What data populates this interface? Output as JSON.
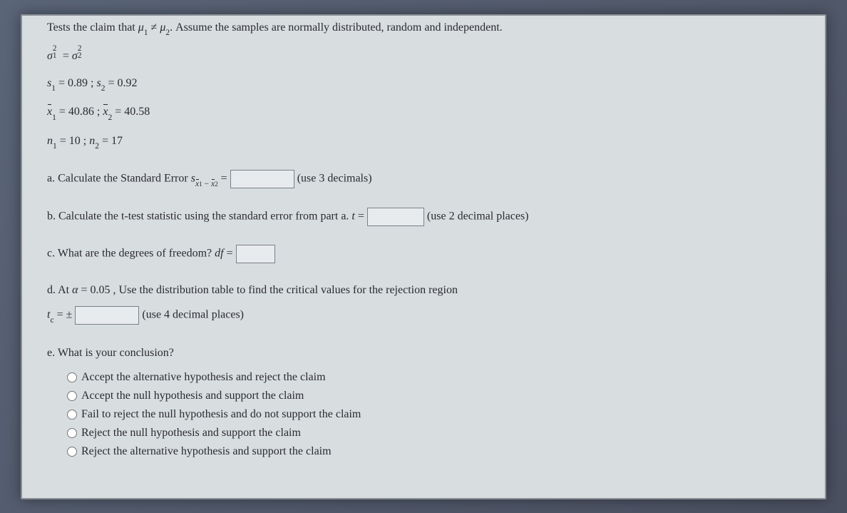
{
  "intro": "Tests the claim that μ₁ ≠ μ₂. Assume the samples are normally distributed, random and independent.",
  "given": {
    "variances_equal": "σ₁² = σ₂²",
    "s_line": "s₁ = 0.89 ; s₂ = 0.92",
    "xbar_line": "x̄₁ = 40.86 ; x̄₂ = 40.58",
    "n_line": "n₁ = 10 ; n₂ = 17"
  },
  "parts": {
    "a": {
      "label_pre": "a. Calculate the Standard Error ",
      "se_symbol": "s",
      "se_sub": "x̄₁ − x̄₂",
      "equals": " = ",
      "hint": "(use 3 decimals)"
    },
    "b": {
      "text_pre": "b. Calculate the t-test statistic using the standard error from part a. ",
      "tvar": "t",
      "eq": " = ",
      "hint": "(use 2 decimal places)"
    },
    "c": {
      "text_pre": "c. What are the degrees of freedom? ",
      "dfvar": "df",
      "eq": " = "
    },
    "d": {
      "line1_pre": "d. At ",
      "alpha": "α",
      "alpha_val": " = 0.05 , Use the distribution table to find the critical values for the rejection region",
      "tc_pre": "t",
      "tc_sub": "c",
      "tc_eq": " = ± ",
      "hint": "(use 4 decimal places)"
    },
    "e": {
      "question": "e. What is your conclusion?",
      "options": [
        "Accept the alternative hypothesis and reject the claim",
        "Accept the null hypothesis and support the claim",
        "Fail to reject the null hypothesis and do not support the claim",
        "Reject the null hypothesis and support the claim",
        "Reject the alternative hypothesis and support the claim"
      ]
    }
  }
}
